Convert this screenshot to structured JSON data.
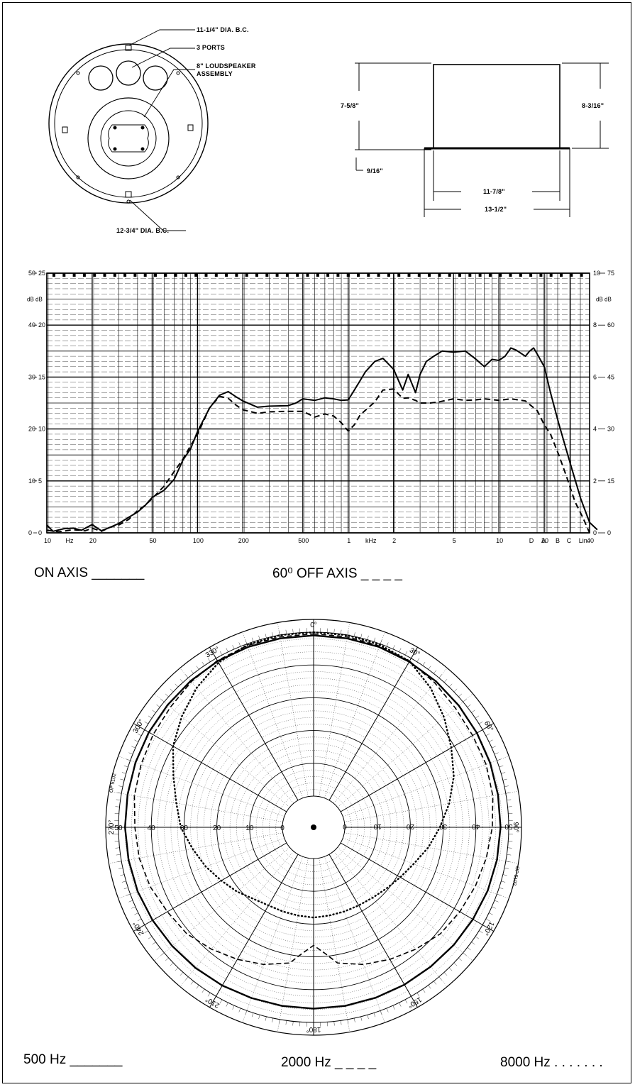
{
  "drawing": {
    "callouts": {
      "bc_inner": "11-1/4\" DIA. B.C.",
      "ports": "3 PORTS",
      "speaker_line1": "8\" LOUDSPEAKER",
      "speaker_line2": "ASSEMBLY",
      "bc_outer": "12-3/4\" DIA. B.C."
    },
    "dims": {
      "left_height": "7-5/8\"",
      "right_height": "8-3/16\"",
      "flange": "9/16\"",
      "inner_width": "11-7/8\"",
      "outer_width": "13-1/2\""
    }
  },
  "freq_legend": {
    "on_axis": "ON AXIS _______",
    "off_axis": "60⁰ OFF AXIS _ _ _ _"
  },
  "polar_legend": {
    "f500": "500 Hz _______",
    "f2000": "2000 Hz _ _ _ _",
    "f8000": "8000 Hz . . . . . . ."
  },
  "chart_data": [
    {
      "type": "line",
      "x_scale": "log",
      "xlim": [
        10,
        40000
      ],
      "ylim": [
        0,
        50
      ],
      "x_tick_labels": [
        "10",
        "Hz",
        "20",
        "50",
        "100",
        "200",
        "500",
        "1",
        "kHz",
        "2",
        "5",
        "10",
        "20",
        "40",
        "D",
        "A",
        "B",
        "C",
        "Lin."
      ],
      "x_tick_values": [
        10,
        20,
        50,
        100,
        200,
        500,
        1000,
        2000,
        5000,
        10000,
        20000,
        40000
      ],
      "left_ticks_db50": [
        "0",
        "10",
        "20",
        "30",
        "40",
        "50"
      ],
      "left_ticks_db25": [
        "0",
        "5",
        "10",
        "15",
        "20",
        "25"
      ],
      "left_unit": "dB dB",
      "right_ticks_inner": [
        "0",
        "2",
        "4",
        "6",
        "8",
        "10"
      ],
      "right_ticks_outer": [
        "0",
        "15",
        "30",
        "45",
        "60",
        "75"
      ],
      "right_unit": "dB dB",
      "series": [
        {
          "name": "ON AXIS",
          "style": "solid",
          "x": [
            10,
            11,
            13,
            15,
            17,
            20,
            23,
            27,
            30,
            35,
            40,
            45,
            50,
            60,
            70,
            80,
            90,
            100,
            120,
            140,
            160,
            180,
            200,
            250,
            300,
            400,
            450,
            500,
            600,
            700,
            800,
            900,
            1000,
            1100,
            1300,
            1500,
            1700,
            2000,
            2300,
            2500,
            2800,
            3000,
            3300,
            3700,
            4200,
            5000,
            6000,
            7000,
            8000,
            9000,
            10000,
            11000,
            12000,
            13000,
            15000,
            16000,
            17000,
            18000,
            20000,
            22000,
            25000,
            30000,
            35000,
            40000,
            45000
          ],
          "y": [
            1.5,
            0.3,
            0.8,
            0.9,
            0.5,
            1.6,
            0.4,
            1.2,
            1.8,
            3.0,
            4.0,
            5.3,
            6.8,
            8.2,
            10.3,
            14.0,
            16.2,
            19.5,
            24.0,
            26.5,
            27.2,
            26.2,
            25.4,
            24.2,
            24.4,
            24.5,
            25.0,
            25.8,
            25.5,
            26.0,
            25.8,
            25.5,
            25.6,
            27.5,
            31.0,
            33.0,
            33.6,
            31.5,
            27.5,
            30.5,
            27.0,
            30.5,
            33.0,
            34.0,
            35.0,
            34.8,
            35.0,
            33.5,
            32.0,
            33.4,
            33.2,
            34.0,
            35.6,
            35.2,
            34.0,
            35.0,
            35.6,
            34.4,
            32.0,
            27.0,
            21.0,
            13.0,
            6.5,
            2.0,
            0.6
          ]
        },
        {
          "name": "60⁰ OFF AXIS",
          "style": "dashed",
          "x": [
            10,
            12,
            15,
            18,
            20,
            23,
            27,
            30,
            35,
            40,
            45,
            50,
            60,
            70,
            80,
            90,
            100,
            120,
            140,
            160,
            180,
            200,
            250,
            300,
            400,
            500,
            600,
            700,
            800,
            900,
            1000,
            1100,
            1200,
            1500,
            1700,
            2000,
            2300,
            2500,
            2800,
            3000,
            3500,
            4000,
            5000,
            6000,
            7000,
            8000,
            10000,
            12000,
            15000,
            18000,
            20000,
            22000,
            25000,
            28000,
            32000,
            36000,
            40000
          ],
          "y": [
            0.5,
            0.2,
            0.6,
            0.4,
            0.9,
            0.3,
            1.2,
            1.5,
            2.6,
            4.3,
            5.3,
            6.6,
            9.0,
            11.8,
            14.2,
            16.8,
            19.0,
            24.0,
            26.3,
            25.9,
            24.6,
            23.7,
            23.0,
            23.3,
            23.4,
            23.4,
            22.3,
            22.9,
            22.5,
            21.2,
            19.6,
            20.8,
            22.7,
            25.2,
            27.5,
            27.7,
            25.9,
            26.0,
            25.5,
            25.0,
            25.0,
            25.2,
            25.8,
            25.5,
            25.6,
            25.8,
            25.5,
            25.8,
            25.4,
            23.5,
            20.8,
            19.0,
            15.0,
            11.0,
            6.0,
            3.0,
            0.0
          ]
        }
      ]
    },
    {
      "type": "polar",
      "radial_ticks": [
        "0",
        "10",
        "20",
        "30",
        "40",
        "50"
      ],
      "angle_ticks": [
        "0°",
        "30°",
        "60°",
        "90°",
        "120°",
        "150°",
        "180°",
        "210°",
        "240°",
        "270°",
        "300°",
        "330°"
      ],
      "angle_tick_values": [
        0,
        30,
        60,
        90,
        120,
        150,
        180,
        210,
        240,
        270,
        300,
        330
      ],
      "side_text_left": "OP 5102",
      "side_text_right": "OP 5102",
      "series": [
        {
          "name": "500 Hz",
          "style": "solid",
          "angle": [
            0,
            10,
            20,
            30,
            40,
            50,
            60,
            70,
            80,
            90,
            100,
            110,
            120,
            130,
            140,
            150,
            160,
            170,
            180,
            190,
            200,
            210,
            220,
            230,
            240,
            250,
            260,
            270,
            280,
            290,
            300,
            310,
            320,
            330,
            340,
            350
          ],
          "r": [
            49,
            49,
            49,
            48.8,
            48.6,
            48.3,
            48.0,
            47.8,
            47.6,
            47.5,
            47.3,
            47.0,
            46.6,
            46.3,
            46.0,
            45.9,
            45.8,
            45.8,
            45.8,
            45.8,
            45.9,
            46.2,
            46.5,
            46.8,
            47.2,
            47.6,
            47.8,
            48.0,
            48.1,
            48.3,
            48.5,
            48.6,
            48.8,
            49.0,
            49.0,
            49.0
          ]
        },
        {
          "name": "2000 Hz",
          "style": "dashed",
          "angle": [
            0,
            10,
            20,
            30,
            40,
            50,
            60,
            70,
            80,
            90,
            100,
            110,
            120,
            130,
            140,
            150,
            160,
            170,
            175,
            180,
            185,
            190,
            200,
            210,
            220,
            230,
            240,
            250,
            260,
            270,
            280,
            290,
            300,
            310,
            320,
            330,
            340,
            350
          ],
          "r": [
            49.5,
            49.5,
            49.3,
            49.0,
            48.0,
            47.0,
            46.5,
            46.5,
            46.0,
            45.0,
            44.0,
            43.0,
            42.0,
            41.0,
            39.0,
            37.0,
            35.0,
            32.5,
            29.0,
            26.5,
            29.0,
            32.5,
            35.0,
            37.0,
            39.0,
            41.0,
            42.0,
            43.5,
            44.5,
            45.0,
            46.0,
            46.5,
            47.0,
            47.5,
            48.5,
            49.2,
            49.5,
            49.5
          ]
        },
        {
          "name": "8000 Hz",
          "style": "dotted",
          "angle": [
            0,
            10,
            20,
            30,
            40,
            50,
            60,
            70,
            80,
            90,
            100,
            110,
            120,
            130,
            140,
            150,
            160,
            170,
            180,
            190,
            200,
            210,
            220,
            230,
            240,
            250,
            260,
            270,
            280,
            290,
            300,
            310,
            320,
            330,
            340,
            350
          ],
          "r": [
            50,
            50,
            49.7,
            49.0,
            46.0,
            42.5,
            39.0,
            36.0,
            32.5,
            29.0,
            26.0,
            23.0,
            21.0,
            19.5,
            18.5,
            18.0,
            17.8,
            17.8,
            18.0,
            17.8,
            17.8,
            18.0,
            19.0,
            21.0,
            23.0,
            25.5,
            28.0,
            31.0,
            33.0,
            36.0,
            40.0,
            43.0,
            46.0,
            48.5,
            49.7,
            50.0
          ]
        }
      ]
    }
  ]
}
